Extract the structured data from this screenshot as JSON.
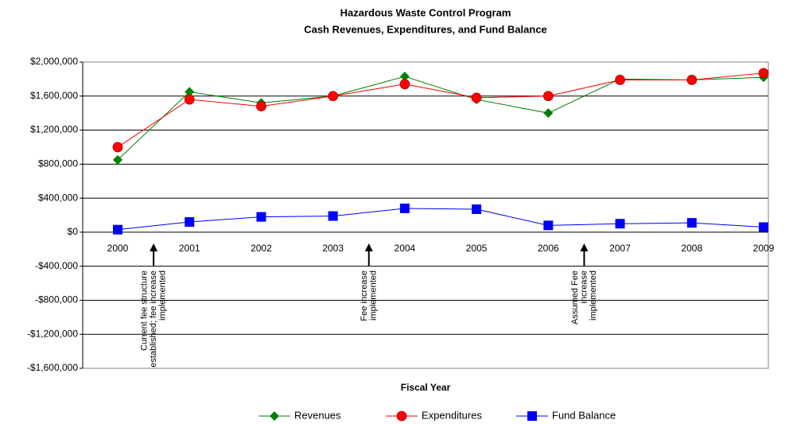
{
  "chart_data": {
    "type": "line",
    "title": "Hazardous Waste Control Program",
    "subtitle": "Cash Revenues, Expenditures, and Fund Balance",
    "x_label": "Fiscal Year",
    "categories": [
      "2000",
      "2001",
      "2002",
      "2003",
      "2004",
      "2005",
      "2006",
      "2007",
      "2008",
      "2009"
    ],
    "series": [
      {
        "name": "Revenues",
        "color": "#008000",
        "marker": "diamond",
        "values": [
          850000,
          1650000,
          1520000,
          1600000,
          1830000,
          1560000,
          1400000,
          1800000,
          1790000,
          1820000
        ]
      },
      {
        "name": "Expenditures",
        "color": "#ff0000",
        "marker": "circle",
        "values": [
          1000000,
          1560000,
          1480000,
          1600000,
          1740000,
          1580000,
          1600000,
          1790000,
          1790000,
          1870000
        ]
      },
      {
        "name": "Fund Balance",
        "color": "#0000ff",
        "marker": "square",
        "values": [
          30000,
          120000,
          180000,
          190000,
          280000,
          270000,
          80000,
          100000,
          110000,
          60000
        ]
      }
    ],
    "ylim": [
      -1600000,
      2000000
    ],
    "yticks": [
      {
        "value": -1600000,
        "label": "-$1,600,000"
      },
      {
        "value": -1200000,
        "label": "-$1,200,000"
      },
      {
        "value": -800000,
        "label": "-$800,000"
      },
      {
        "value": -400000,
        "label": "-$400,000"
      },
      {
        "value": 0,
        "label": "$0"
      },
      {
        "value": 400000,
        "label": "$400,000"
      },
      {
        "value": 800000,
        "label": "$800,000"
      },
      {
        "value": 1200000,
        "label": "$1,200,000"
      },
      {
        "value": 1600000,
        "label": "$1,600,000"
      },
      {
        "value": 2000000,
        "label": "$2,000,000"
      }
    ],
    "grid": true,
    "legend": "bottom",
    "annotations": [
      {
        "lines": [
          "Current fee structure",
          "established; fee increase",
          "implemented"
        ]
      },
      {
        "lines": [
          "Fee increase",
          "implemented"
        ]
      },
      {
        "lines": [
          "Assumed Fee",
          "increase",
          "implemented"
        ]
      }
    ]
  }
}
